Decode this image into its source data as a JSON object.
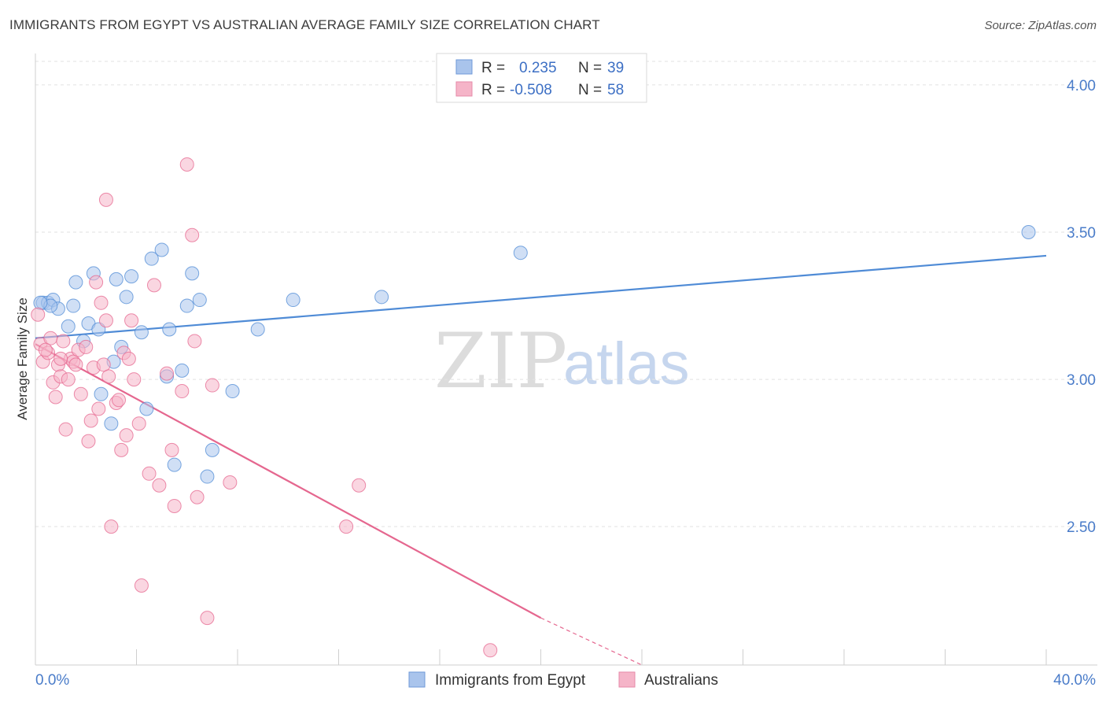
{
  "header": {
    "title": "IMMIGRANTS FROM EGYPT VS AUSTRALIAN AVERAGE FAMILY SIZE CORRELATION CHART",
    "source": "Source: ZipAtlas.com"
  },
  "watermark": {
    "zip": "ZIP",
    "atlas": "atlas"
  },
  "legend": {
    "rows": [
      {
        "r_label": "R =",
        "r_value": "0.235",
        "n_label": "N =",
        "n_value": "39",
        "color": "#a9c4ec"
      },
      {
        "r_label": "R =",
        "r_value": "-0.508",
        "n_label": "N =",
        "n_value": "58",
        "color": "#f5b4c8"
      }
    ]
  },
  "bottom_legend": [
    {
      "label": "Immigrants from Egypt",
      "color": "#a9c4ec"
    },
    {
      "label": "Australians",
      "color": "#f5b4c8"
    }
  ],
  "chart_data": {
    "type": "scatter",
    "title": "IMMIGRANTS FROM EGYPT VS AUSTRALIAN AVERAGE FAMILY SIZE CORRELATION CHART",
    "xlabel": "",
    "ylabel": "Average Family Size",
    "xlim": [
      0,
      40
    ],
    "ylim": [
      2.03,
      4.08
    ],
    "x_tick_labels": [
      "0.0%",
      "40.0%"
    ],
    "y_ticks": [
      2.5,
      3.0,
      3.5,
      4.0
    ],
    "y_tick_labels": [
      "2.50",
      "3.00",
      "3.50",
      "4.00"
    ],
    "grid": "horizontal dashed",
    "legend_position": "top-center",
    "series": [
      {
        "name": "Immigrants from Egypt",
        "color": "#4f8bd6",
        "fill": "#a9c4ec",
        "trend": {
          "x": [
            0,
            40
          ],
          "y": [
            3.14,
            3.42
          ]
        },
        "points": [
          [
            0.3,
            3.26
          ],
          [
            0.5,
            3.26
          ],
          [
            0.7,
            3.27
          ],
          [
            0.9,
            3.24
          ],
          [
            1.3,
            3.18
          ],
          [
            1.5,
            3.25
          ],
          [
            1.6,
            3.33
          ],
          [
            1.9,
            3.13
          ],
          [
            2.1,
            3.19
          ],
          [
            2.3,
            3.36
          ],
          [
            2.5,
            3.17
          ],
          [
            2.6,
            2.95
          ],
          [
            3.0,
            2.85
          ],
          [
            3.1,
            3.06
          ],
          [
            3.2,
            3.34
          ],
          [
            3.4,
            3.11
          ],
          [
            3.6,
            3.28
          ],
          [
            3.8,
            3.35
          ],
          [
            4.2,
            3.16
          ],
          [
            4.4,
            2.9
          ],
          [
            4.6,
            3.41
          ],
          [
            5.0,
            3.44
          ],
          [
            5.2,
            3.01
          ],
          [
            5.3,
            3.17
          ],
          [
            5.5,
            2.71
          ],
          [
            5.8,
            3.03
          ],
          [
            6.0,
            3.25
          ],
          [
            6.2,
            3.36
          ],
          [
            6.5,
            3.27
          ],
          [
            6.8,
            2.67
          ],
          [
            7.0,
            2.76
          ],
          [
            7.8,
            2.96
          ],
          [
            8.8,
            3.17
          ],
          [
            10.2,
            3.27
          ],
          [
            13.7,
            3.28
          ],
          [
            19.2,
            3.43
          ],
          [
            39.3,
            3.5
          ],
          [
            0.6,
            3.25
          ],
          [
            0.2,
            3.26
          ]
        ]
      },
      {
        "name": "Australians",
        "color": "#e5678f",
        "fill": "#f5b4c8",
        "trend": {
          "x": [
            0,
            20
          ],
          "y": [
            3.12,
            2.19
          ]
        },
        "trend_dashed": {
          "x": [
            20,
            24
          ],
          "y": [
            2.19,
            2.03
          ]
        },
        "points": [
          [
            0.1,
            3.22
          ],
          [
            0.2,
            3.12
          ],
          [
            0.3,
            3.06
          ],
          [
            0.5,
            3.09
          ],
          [
            0.6,
            3.14
          ],
          [
            0.7,
            2.99
          ],
          [
            0.8,
            2.94
          ],
          [
            0.9,
            3.05
          ],
          [
            1.0,
            3.01
          ],
          [
            1.1,
            3.13
          ],
          [
            1.2,
            2.83
          ],
          [
            1.3,
            3.0
          ],
          [
            1.4,
            3.07
          ],
          [
            1.5,
            3.06
          ],
          [
            1.6,
            3.05
          ],
          [
            1.7,
            3.1
          ],
          [
            1.8,
            2.95
          ],
          [
            2.0,
            3.11
          ],
          [
            2.1,
            2.79
          ],
          [
            2.2,
            2.86
          ],
          [
            2.3,
            3.04
          ],
          [
            2.4,
            3.33
          ],
          [
            2.5,
            2.9
          ],
          [
            2.6,
            3.26
          ],
          [
            2.7,
            3.05
          ],
          [
            2.8,
            3.2
          ],
          [
            2.9,
            3.01
          ],
          [
            2.8,
            3.61
          ],
          [
            3.0,
            2.5
          ],
          [
            3.2,
            2.92
          ],
          [
            3.3,
            2.93
          ],
          [
            3.4,
            2.76
          ],
          [
            3.5,
            3.09
          ],
          [
            3.6,
            2.81
          ],
          [
            3.7,
            3.07
          ],
          [
            3.8,
            3.2
          ],
          [
            3.9,
            3.0
          ],
          [
            4.1,
            2.85
          ],
          [
            4.2,
            2.3
          ],
          [
            4.5,
            2.68
          ],
          [
            4.7,
            3.32
          ],
          [
            4.9,
            2.64
          ],
          [
            5.2,
            3.02
          ],
          [
            5.4,
            2.76
          ],
          [
            5.5,
            2.57
          ],
          [
            5.8,
            2.96
          ],
          [
            6.0,
            3.73
          ],
          [
            6.2,
            3.49
          ],
          [
            6.3,
            3.13
          ],
          [
            6.4,
            2.6
          ],
          [
            6.8,
            2.19
          ],
          [
            7.0,
            2.98
          ],
          [
            7.7,
            2.65
          ],
          [
            12.3,
            2.5
          ],
          [
            12.8,
            2.64
          ],
          [
            18.0,
            2.08
          ],
          [
            0.4,
            3.1
          ],
          [
            1.0,
            3.07
          ]
        ]
      }
    ]
  }
}
